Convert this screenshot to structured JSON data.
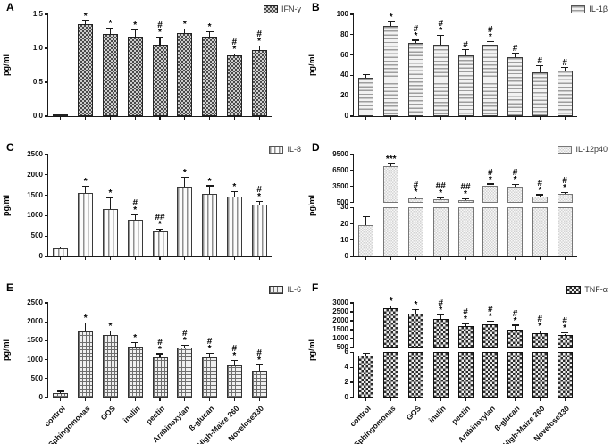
{
  "chart_data": [
    {
      "letter": "A",
      "type": "bar",
      "legend": "IFN-γ",
      "pattern": "ifn",
      "ylabel": "pg/ml",
      "categories": [
        "control",
        "Sphingomonas",
        "GOS",
        "inulin",
        "pectin",
        "Arabinoxylan",
        "ß-glucan",
        "High-Maize 260",
        "Novelose330"
      ],
      "values": [
        0.02,
        1.35,
        1.21,
        1.17,
        1.05,
        1.23,
        1.17,
        0.89,
        0.98
      ],
      "errors": [
        0,
        0.05,
        0.08,
        0.09,
        0.11,
        0.05,
        0.07,
        0.02,
        0.05
      ],
      "annotations": [
        [],
        [
          "*"
        ],
        [
          "*"
        ],
        [
          "*"
        ],
        [
          "#",
          "*"
        ],
        [
          "*"
        ],
        [
          "*"
        ],
        [
          "#",
          "*"
        ],
        [
          "#",
          "*"
        ]
      ],
      "axis": {
        "type": "linear",
        "max": 1.5,
        "ticks": [
          0,
          0.5,
          1,
          1.5
        ],
        "labels": [
          "0.0",
          "0.5",
          "1.0",
          "1.5"
        ]
      },
      "show_xlabels": false
    },
    {
      "letter": "B",
      "type": "bar",
      "legend": "IL-1β",
      "pattern": "il1b",
      "ylabel": "pg/ml",
      "categories": [
        "control",
        "Sphingomonas",
        "GOS",
        "inulin",
        "pectin",
        "Arabinoxylan",
        "ß-glucan",
        "High-Maize 260",
        "Novelose330"
      ],
      "values": [
        38,
        89,
        72,
        70,
        60,
        70,
        58,
        43,
        45
      ],
      "errors": [
        2,
        3,
        2,
        9,
        5,
        3,
        3,
        6,
        2
      ],
      "annotations": [
        [],
        [
          "*"
        ],
        [
          "#",
          "*"
        ],
        [
          "#",
          "*"
        ],
        [
          "#"
        ],
        [
          "#",
          "*"
        ],
        [
          "#"
        ],
        [
          "#"
        ],
        [
          "#"
        ]
      ],
      "axis": {
        "type": "linear",
        "max": 100,
        "ticks": [
          0,
          20,
          40,
          60,
          80,
          100
        ],
        "labels": [
          "0",
          "20",
          "40",
          "60",
          "80",
          "100"
        ]
      },
      "show_xlabels": false
    },
    {
      "letter": "C",
      "type": "bar",
      "legend": "IL-8",
      "pattern": "il8",
      "ylabel": "pg/ml",
      "categories": [
        "control",
        "Sphingomonas",
        "GOS",
        "inulin",
        "pectin",
        "Arabinoxylan",
        "ß-glucan",
        "High-Maize 260",
        "Novelose330"
      ],
      "values": [
        200,
        1560,
        1170,
        910,
        610,
        1720,
        1540,
        1460,
        1280
      ],
      "errors": [
        25,
        150,
        260,
        90,
        40,
        210,
        180,
        110,
        50
      ],
      "annotations": [
        [],
        [
          "*"
        ],
        [
          "*"
        ],
        [
          "#",
          "*"
        ],
        [
          "##",
          "*"
        ],
        [
          "*"
        ],
        [
          "*"
        ],
        [
          "*"
        ],
        [
          "#",
          "*"
        ]
      ],
      "axis": {
        "type": "linear",
        "max": 2500,
        "ticks": [
          0,
          500,
          1000,
          1500,
          2000,
          2500
        ],
        "labels": [
          "0",
          "500",
          "1000",
          "1500",
          "2000",
          "2500"
        ]
      },
      "show_xlabels": false
    },
    {
      "letter": "D",
      "type": "bar",
      "legend": "IL-12p40",
      "pattern": "il12",
      "ylabel": "pg/ml",
      "categories": [
        "control",
        "Sphingomonas",
        "GOS",
        "inulin",
        "pectin",
        "Arabinoxylan",
        "ß-glucan",
        "High-Maize 260",
        "Novelose330"
      ],
      "values": [
        19,
        7300,
        1300,
        1150,
        950,
        3700,
        3450,
        1650,
        2100
      ],
      "errors": [
        5,
        300,
        150,
        150,
        100,
        150,
        350,
        200,
        180
      ],
      "annotations": [
        [],
        [
          "***"
        ],
        [
          "#",
          "*"
        ],
        [
          "##",
          "*"
        ],
        [
          "##",
          "*"
        ],
        [
          "#",
          "*"
        ],
        [
          "#",
          "*"
        ],
        [
          "#",
          "*"
        ],
        [
          "#",
          "*"
        ]
      ],
      "axis": {
        "type": "broken",
        "lower": {
          "max": 30,
          "ticks": [
            0,
            10,
            20,
            30
          ],
          "labels": [
            "0",
            "10",
            "20",
            "30"
          ]
        },
        "upper": {
          "min": 500,
          "max": 9500,
          "ticks": [
            500,
            3500,
            6500,
            9500
          ],
          "labels": [
            "500",
            "3500",
            "6500",
            "9500"
          ]
        }
      },
      "show_xlabels": false
    },
    {
      "letter": "E",
      "type": "bar",
      "legend": "IL-6",
      "pattern": "il6",
      "ylabel": "pg/ml",
      "categories": [
        "control",
        "Sphingomonas",
        "GOS",
        "inulin",
        "pectin",
        "Arabinoxylan",
        "ß-glucan",
        "High-Maize 260",
        "Novelose330"
      ],
      "values": [
        130,
        1750,
        1660,
        1340,
        1070,
        1320,
        1060,
        840,
        710
      ],
      "errors": [
        20,
        200,
        80,
        90,
        70,
        40,
        90,
        120,
        130
      ],
      "annotations": [
        [],
        [
          "*"
        ],
        [
          "*"
        ],
        [
          "*"
        ],
        [
          "#",
          "*"
        ],
        [
          "#",
          "*"
        ],
        [
          "#",
          "*"
        ],
        [
          "#",
          "*"
        ],
        [
          "#",
          "*"
        ]
      ],
      "axis": {
        "type": "linear",
        "max": 2500,
        "ticks": [
          0,
          500,
          1000,
          1500,
          2000,
          2500
        ],
        "labels": [
          "0",
          "500",
          "1000",
          "1500",
          "2000",
          "2500"
        ]
      },
      "show_xlabels": true
    },
    {
      "letter": "F",
      "type": "bar",
      "legend": "TNF-α",
      "pattern": "tnf",
      "ylabel": "pg/ml",
      "categories": [
        "control",
        "Sphingomonas",
        "GOS",
        "inulin",
        "pectin",
        "Arabinoxylan",
        "ß-glucan",
        "High-Maize 260",
        "Novelose330"
      ],
      "values": [
        5.6,
        2720,
        2420,
        2100,
        1720,
        1800,
        1520,
        1280,
        1180
      ],
      "errors": [
        0.15,
        90,
        160,
        180,
        90,
        160,
        200,
        120,
        90
      ],
      "annotations": [
        [],
        [
          "*"
        ],
        [
          "*"
        ],
        [
          "#",
          "*"
        ],
        [
          "#",
          "*"
        ],
        [
          "#",
          "*"
        ],
        [
          "#",
          "*"
        ],
        [
          "#",
          "*"
        ],
        [
          "#",
          "*"
        ]
      ],
      "axis": {
        "type": "broken",
        "lower": {
          "max": 6,
          "ticks": [
            0,
            2,
            4,
            6
          ],
          "labels": [
            "0",
            "2",
            "4",
            "6"
          ]
        },
        "upper": {
          "min": 500,
          "max": 3000,
          "ticks": [
            500,
            1000,
            1500,
            2000,
            2500,
            3000
          ],
          "labels": [
            "500",
            "1000",
            "1500",
            "2000",
            "2500",
            "3000"
          ]
        }
      },
      "show_xlabels": true
    }
  ]
}
